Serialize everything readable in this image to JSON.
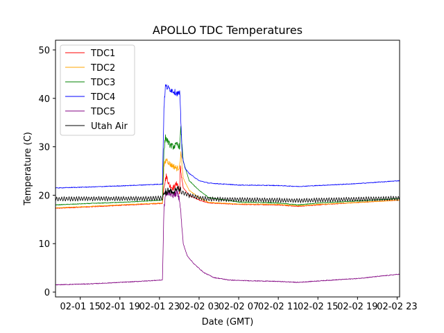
{
  "chart_data": {
    "type": "line",
    "title": "APOLLO TDC Temperatures",
    "xlabel": "Date (GMT)",
    "ylabel": "Temperature (C)",
    "xlim": [
      12.5,
      47.25
    ],
    "ylim": [
      -1,
      52
    ],
    "x_unit": "hours since 02-01 00:00 GMT",
    "x_ticks": [
      {
        "value": 15,
        "label": "02-01 15"
      },
      {
        "value": 19,
        "label": "02-01 19"
      },
      {
        "value": 23,
        "label": "02-01 23"
      },
      {
        "value": 27,
        "label": "02-02 03"
      },
      {
        "value": 31,
        "label": "02-02 07"
      },
      {
        "value": 35,
        "label": "02-02 11"
      },
      {
        "value": 39,
        "label": "02-02 15"
      },
      {
        "value": 43,
        "label": "02-02 19"
      },
      {
        "value": 47,
        "label": "02-02 23"
      }
    ],
    "y_ticks": [
      0,
      10,
      20,
      30,
      40,
      50
    ],
    "legend_position": "top-left",
    "series": [
      {
        "name": "TDC1",
        "color": "#ff0000",
        "x": [
          12.5,
          16,
          20,
          23.3,
          23.45,
          23.7,
          24,
          24.4,
          24.8,
          25.05,
          25.1,
          25.4,
          26,
          27,
          28,
          31,
          35,
          37,
          39,
          43,
          47.25
        ],
        "y": [
          17.3,
          17.6,
          18.0,
          18.3,
          22.0,
          24.0,
          22.0,
          21.5,
          22.5,
          20.5,
          25.8,
          21.5,
          20.0,
          19.0,
          18.4,
          18.1,
          18.0,
          17.7,
          18.0,
          18.5,
          19.0
        ]
      },
      {
        "name": "TDC2",
        "color": "#ffa500",
        "x": [
          12.5,
          16,
          20,
          23.3,
          23.45,
          23.7,
          24,
          24.4,
          24.8,
          25.05,
          25.15,
          25.4,
          26,
          27,
          28,
          31,
          35,
          37,
          39,
          43,
          47.25
        ],
        "y": [
          17.4,
          17.7,
          18.1,
          18.4,
          26.0,
          27.5,
          26.5,
          26.0,
          25.5,
          26.0,
          29.0,
          23.5,
          21.0,
          19.5,
          18.5,
          18.2,
          18.1,
          17.8,
          18.1,
          18.5,
          19.0
        ]
      },
      {
        "name": "TDC3",
        "color": "#008000",
        "x": [
          12.5,
          16,
          20,
          23.3,
          23.45,
          23.6,
          24,
          24.4,
          24.8,
          25.05,
          25.15,
          25.4,
          26,
          27,
          28,
          31,
          35,
          37,
          39,
          43,
          47.25
        ],
        "y": [
          18.0,
          18.3,
          18.6,
          19.0,
          29.0,
          32.0,
          30.5,
          30.0,
          30.5,
          30.0,
          34.0,
          27.0,
          23.0,
          21.0,
          19.5,
          18.6,
          18.4,
          18.0,
          18.4,
          18.8,
          19.3
        ]
      },
      {
        "name": "TDC4",
        "color": "#0000ff",
        "x": [
          12.5,
          16,
          20,
          23.3,
          23.45,
          23.6,
          24,
          24.4,
          24.8,
          25.05,
          25.3,
          25.6,
          26,
          27,
          28,
          31,
          35,
          37,
          39,
          43,
          47.25
        ],
        "y": [
          21.5,
          21.7,
          22.0,
          22.3,
          38.0,
          42.5,
          42.0,
          41.5,
          41.0,
          41.0,
          28.0,
          25.5,
          24.5,
          23.0,
          22.5,
          22.1,
          22.0,
          21.8,
          22.0,
          22.4,
          23.0
        ]
      },
      {
        "name": "TDC5",
        "color": "#800080",
        "x": [
          12.5,
          16,
          20,
          23.3,
          23.45,
          23.6,
          24,
          24.4,
          24.8,
          25.05,
          25.4,
          25.8,
          26.5,
          27.5,
          28.5,
          30,
          31,
          35,
          37,
          39,
          43,
          47.25
        ],
        "y": [
          1.5,
          1.7,
          2.1,
          2.5,
          17.0,
          20.0,
          20.5,
          20.0,
          20.5,
          19.0,
          10.0,
          7.5,
          5.8,
          4.0,
          3.0,
          2.5,
          2.4,
          2.2,
          2.0,
          2.3,
          2.8,
          3.7
        ]
      },
      {
        "name": "Utah Air",
        "color": "#000000",
        "x": [
          12.5,
          16,
          20,
          23.3,
          23.5,
          24,
          24.4,
          24.8,
          25,
          25.4,
          26,
          27,
          28,
          31,
          35,
          37,
          39,
          43,
          47.25
        ],
        "y": [
          19.2,
          19.3,
          19.3,
          19.4,
          20.3,
          21.0,
          20.5,
          21.5,
          21.0,
          20.5,
          20.0,
          19.5,
          19.2,
          19.1,
          19.0,
          18.9,
          19.0,
          19.2,
          19.4
        ],
        "oscillation": 0.45
      }
    ]
  }
}
